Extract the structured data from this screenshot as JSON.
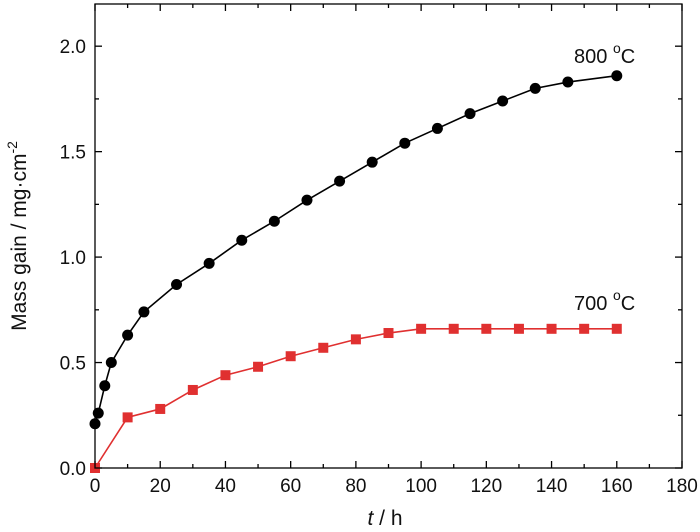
{
  "chart_data": {
    "type": "line",
    "xlabel_italic": "t",
    "xlabel_rest": " / h",
    "ylabel": "Mass gain / mg·cm",
    "ylabel_sup": "-2",
    "xlim": [
      0,
      180
    ],
    "ylim": [
      0,
      2.2
    ],
    "x_ticks": [
      0,
      20,
      40,
      60,
      80,
      100,
      120,
      140,
      160,
      180
    ],
    "y_ticks": [
      0.0,
      0.5,
      1.0,
      1.5,
      2.0
    ],
    "y_tick_labels": [
      "0.0",
      "0.5",
      "1.0",
      "1.5",
      "2.0"
    ],
    "grid": false,
    "series": [
      {
        "name": "800 °C",
        "label_main": "800 ",
        "label_deg": "o",
        "label_unit": "C",
        "color": "#000000",
        "marker": "circle",
        "x": [
          0,
          1,
          3,
          5,
          10,
          15,
          25,
          35,
          45,
          55,
          65,
          75,
          85,
          95,
          105,
          115,
          125,
          135,
          145,
          160
        ],
        "y": [
          0.21,
          0.26,
          0.39,
          0.5,
          0.63,
          0.74,
          0.87,
          0.97,
          1.08,
          1.17,
          1.27,
          1.36,
          1.45,
          1.54,
          1.61,
          1.68,
          1.74,
          1.8,
          1.83,
          1.86
        ]
      },
      {
        "name": "700 °C",
        "label_main": "700 ",
        "label_deg": "o",
        "label_unit": "C",
        "color": "#e03030",
        "marker": "square",
        "x": [
          0,
          10,
          20,
          30,
          40,
          50,
          60,
          70,
          80,
          90,
          100,
          110,
          120,
          130,
          140,
          150,
          160
        ],
        "y": [
          0.0,
          0.24,
          0.28,
          0.37,
          0.44,
          0.48,
          0.53,
          0.57,
          0.61,
          0.64,
          0.66,
          0.66,
          0.66,
          0.66,
          0.66,
          0.66,
          0.66
        ]
      }
    ]
  }
}
